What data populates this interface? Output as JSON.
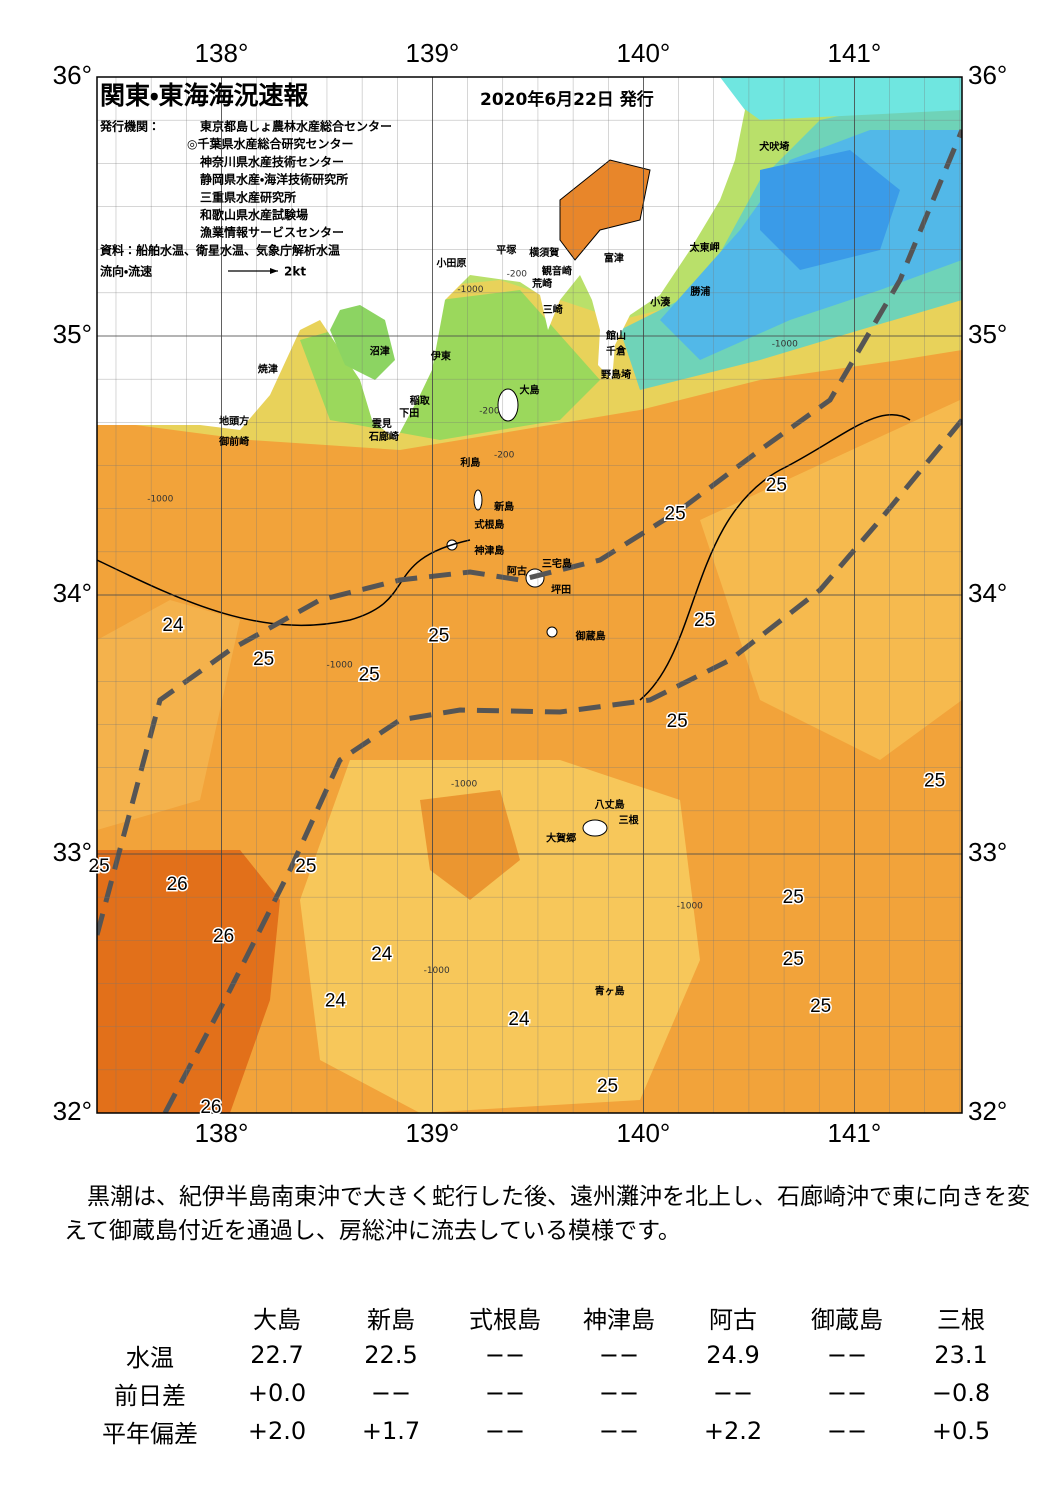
{
  "map": {
    "title": "関東・東海海況速報",
    "date": "2020年6月22日 発行",
    "issuer_label": "発行機関：",
    "issuers": [
      "東京都島しょ農林水産総合センター",
      "◎千葉県水産総合研究センター",
      "神奈川県水産技術センター",
      "静岡県水産・海洋技術研究所",
      "三重県水産研究所",
      "和歌山県水産試験場",
      "漁業情報サービスセンター"
    ],
    "sources": "資料：船舶水温、衛星水温、気象庁解析水温",
    "flow_label": "流向・流速",
    "flow_scale": "2kt",
    "xlim": [
      137.41,
      141.51
    ],
    "ylim": [
      32,
      36
    ],
    "lon_ticks": [
      {
        "value": 138,
        "label": "138°"
      },
      {
        "value": 139,
        "label": "139°"
      },
      {
        "value": 140,
        "label": "140°"
      },
      {
        "value": 141,
        "label": "141°"
      }
    ],
    "lat_ticks": [
      {
        "value": 36,
        "label": "36°"
      },
      {
        "value": 35,
        "label": "35°"
      },
      {
        "value": 34,
        "label": "34°"
      },
      {
        "value": 33,
        "label": "33°"
      },
      {
        "value": 32,
        "label": "32°"
      }
    ],
    "places": [
      {
        "name": "犬吠埼",
        "lon": 140.62,
        "lat": 35.73
      },
      {
        "name": "富津",
        "lon": 139.86,
        "lat": 35.3
      },
      {
        "name": "太東岬",
        "lon": 140.29,
        "lat": 35.34
      },
      {
        "name": "勝浦",
        "lon": 140.27,
        "lat": 35.17
      },
      {
        "name": "小湊",
        "lon": 140.08,
        "lat": 35.13
      },
      {
        "name": "館山",
        "lon": 139.87,
        "lat": 35.0
      },
      {
        "name": "千倉",
        "lon": 139.87,
        "lat": 34.94
      },
      {
        "name": "野島埼",
        "lon": 139.87,
        "lat": 34.85
      },
      {
        "name": "平塚",
        "lon": 139.35,
        "lat": 35.33
      },
      {
        "name": "横須賀",
        "lon": 139.53,
        "lat": 35.32
      },
      {
        "name": "観音崎",
        "lon": 139.59,
        "lat": 35.25
      },
      {
        "name": "荒崎",
        "lon": 139.52,
        "lat": 35.2
      },
      {
        "name": "三崎",
        "lon": 139.57,
        "lat": 35.1
      },
      {
        "name": "小田原",
        "lon": 139.09,
        "lat": 35.28
      },
      {
        "name": "沼津",
        "lon": 138.75,
        "lat": 34.94
      },
      {
        "name": "伊東",
        "lon": 139.04,
        "lat": 34.92
      },
      {
        "name": "大島",
        "lon": 139.46,
        "lat": 34.79
      },
      {
        "name": "焼津",
        "lon": 138.22,
        "lat": 34.87
      },
      {
        "name": "稲取",
        "lon": 138.94,
        "lat": 34.75
      },
      {
        "name": "下田",
        "lon": 138.89,
        "lat": 34.7
      },
      {
        "name": "雲見",
        "lon": 138.76,
        "lat": 34.66
      },
      {
        "name": "石廊崎",
        "lon": 138.77,
        "lat": 34.61
      },
      {
        "name": "地頭方",
        "lon": 138.06,
        "lat": 34.67
      },
      {
        "name": "御前崎",
        "lon": 138.06,
        "lat": 34.59
      },
      {
        "name": "利島",
        "lon": 139.18,
        "lat": 34.51
      },
      {
        "name": "新島",
        "lon": 139.34,
        "lat": 34.34
      },
      {
        "name": "式根島",
        "lon": 139.27,
        "lat": 34.27
      },
      {
        "name": "神津島",
        "lon": 139.27,
        "lat": 34.17
      },
      {
        "name": "三宅島",
        "lon": 139.59,
        "lat": 34.12
      },
      {
        "name": "阿古",
        "lon": 139.4,
        "lat": 34.09
      },
      {
        "name": "坪田",
        "lon": 139.61,
        "lat": 34.02
      },
      {
        "name": "御蔵島",
        "lon": 139.75,
        "lat": 33.84
      },
      {
        "name": "八丈島",
        "lon": 139.84,
        "lat": 33.19
      },
      {
        "name": "三根",
        "lon": 139.93,
        "lat": 33.13
      },
      {
        "name": "大賀郷",
        "lon": 139.61,
        "lat": 33.06
      },
      {
        "name": "青ヶ島",
        "lon": 139.84,
        "lat": 32.47
      }
    ],
    "contour_labels": [
      {
        "value": 25,
        "lon": 140.63,
        "lat": 34.42
      },
      {
        "value": 25,
        "lon": 140.15,
        "lat": 34.31
      },
      {
        "value": 25,
        "lon": 140.29,
        "lat": 33.9
      },
      {
        "value": 25,
        "lon": 139.03,
        "lat": 33.84
      },
      {
        "value": 25,
        "lon": 138.2,
        "lat": 33.75
      },
      {
        "value": 25,
        "lon": 138.7,
        "lat": 33.69
      },
      {
        "value": 25,
        "lon": 140.16,
        "lat": 33.51
      },
      {
        "value": 25,
        "lon": 141.38,
        "lat": 33.28
      },
      {
        "value": 25,
        "lon": 138.4,
        "lat": 32.95
      },
      {
        "value": 25,
        "lon": 140.71,
        "lat": 32.83
      },
      {
        "value": 25,
        "lon": 140.71,
        "lat": 32.59
      },
      {
        "value": 25,
        "lon": 140.84,
        "lat": 32.41
      },
      {
        "value": 25,
        "lon": 139.83,
        "lat": 32.1
      },
      {
        "value": 25,
        "lon": 137.42,
        "lat": 32.95
      },
      {
        "value": 24,
        "lon": 137.77,
        "lat": 33.88
      },
      {
        "value": 24,
        "lon": 138.76,
        "lat": 32.61
      },
      {
        "value": 24,
        "lon": 138.54,
        "lat": 32.43
      },
      {
        "value": 24,
        "lon": 139.41,
        "lat": 32.36
      },
      {
        "value": 26,
        "lon": 137.79,
        "lat": 32.88
      },
      {
        "value": 26,
        "lon": 138.01,
        "lat": 32.68
      },
      {
        "value": 26,
        "lon": 137.95,
        "lat": 32.02
      }
    ],
    "depth_labels": [
      {
        "value": -1000,
        "lon": 137.71,
        "lat": 34.37
      },
      {
        "value": -1000,
        "lon": 138.56,
        "lat": 33.73
      },
      {
        "value": -1000,
        "lon": 139.15,
        "lat": 33.27
      },
      {
        "value": -1000,
        "lon": 139.02,
        "lat": 32.55
      },
      {
        "value": -1000,
        "lon": 140.22,
        "lat": 32.8
      },
      {
        "value": -1000,
        "lon": 140.67,
        "lat": 34.97
      },
      {
        "value": -1000,
        "lon": 139.18,
        "lat": 35.18
      },
      {
        "value": -200,
        "lon": 139.4,
        "lat": 35.24
      },
      {
        "value": -200,
        "lon": 139.27,
        "lat": 34.71
      },
      {
        "value": -200,
        "lon": 139.34,
        "lat": 34.54
      }
    ]
  },
  "description": "黒潮は、紀伊半島南東沖で大きく蛇行した後、遠州灘沖を北上し、石廊崎沖で東に向きを変えて御蔵島付近を通過し、房総沖に流去している模様です。",
  "table": {
    "header": [
      "大島",
      "新島",
      "式根島",
      "神津島",
      "阿古",
      "御蔵島",
      "三根"
    ],
    "rows": [
      [
        "水温",
        "22.7",
        "22.5",
        "−−",
        "−−",
        "24.9",
        "−−",
        "23.1"
      ],
      [
        "前日差",
        "+0.0",
        "−−",
        "−−",
        "−−",
        "−−",
        "−−",
        "−0.8"
      ],
      [
        "平年偏差",
        "+2.0",
        "+1.7",
        "−−",
        "−−",
        "+2.2",
        "−−",
        "+0.5"
      ]
    ]
  }
}
